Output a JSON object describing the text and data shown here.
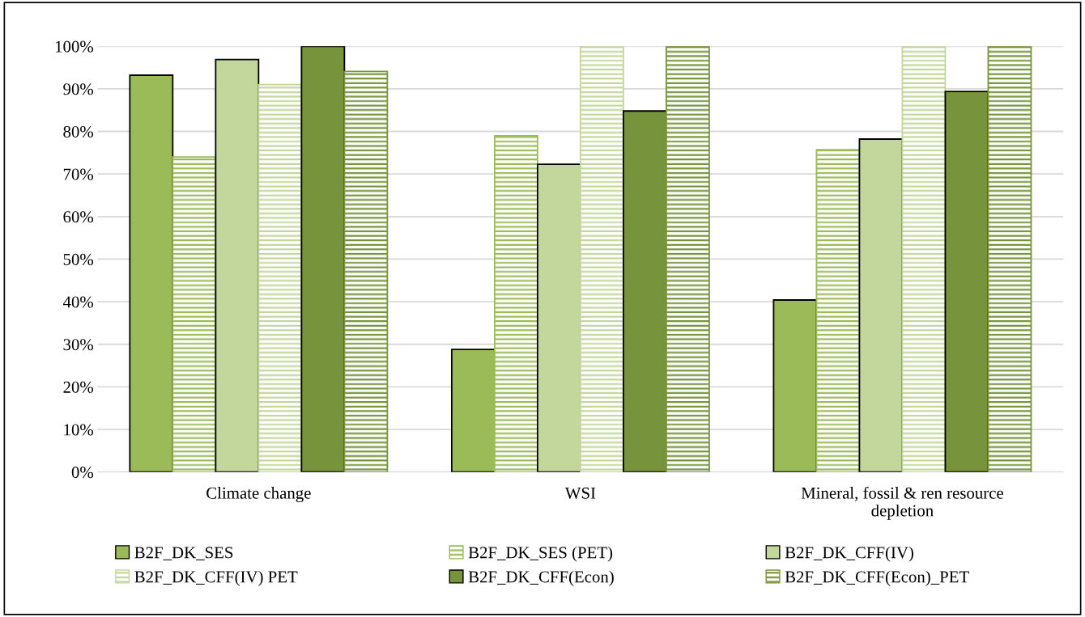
{
  "chart_data": {
    "type": "bar",
    "categories": [
      "Climate change",
      "WSI",
      "Mineral, fossil & ren resource depletion"
    ],
    "series": [
      {
        "name": "B2F_DK_SES",
        "color": "#9bbb59",
        "values": [
          93.2,
          28.8,
          40.4
        ]
      },
      {
        "name": "B2F_DK_SES (PET)",
        "color": "#9bbb59",
        "values": [
          74.0,
          79.0,
          75.7
        ]
      },
      {
        "name": "B2F_DK_CFF(IV)",
        "color": "#c3d69b",
        "values": [
          96.9,
          72.3,
          78.2
        ]
      },
      {
        "name": "B2F_DK_CFF(IV) PET",
        "color": "#c3d69b",
        "values": [
          91.0,
          100,
          100
        ]
      },
      {
        "name": "B2F_DK_CFF(Econ)",
        "color": "#77933c",
        "values": [
          100,
          84.8,
          89.4
        ]
      },
      {
        "name": "B2F_DK_CFF(Econ)_PET",
        "color": "#77933c",
        "values": [
          94.1,
          100,
          100
        ]
      }
    ],
    "ylim": [
      0,
      100
    ],
    "yticks": [
      {
        "value": 0,
        "label": "0%"
      },
      {
        "value": 10,
        "label": "10%"
      },
      {
        "value": 20,
        "label": "20%"
      },
      {
        "value": 30,
        "label": "30%"
      },
      {
        "value": 40,
        "label": "40%"
      },
      {
        "value": 50,
        "label": "50%"
      },
      {
        "value": 60,
        "label": "60%"
      },
      {
        "value": 70,
        "label": "70%"
      },
      {
        "value": 80,
        "label": "80%"
      },
      {
        "value": 90,
        "label": "90%"
      },
      {
        "value": 100,
        "label": "100%"
      }
    ],
    "grid": "y",
    "legend": "bottom"
  }
}
